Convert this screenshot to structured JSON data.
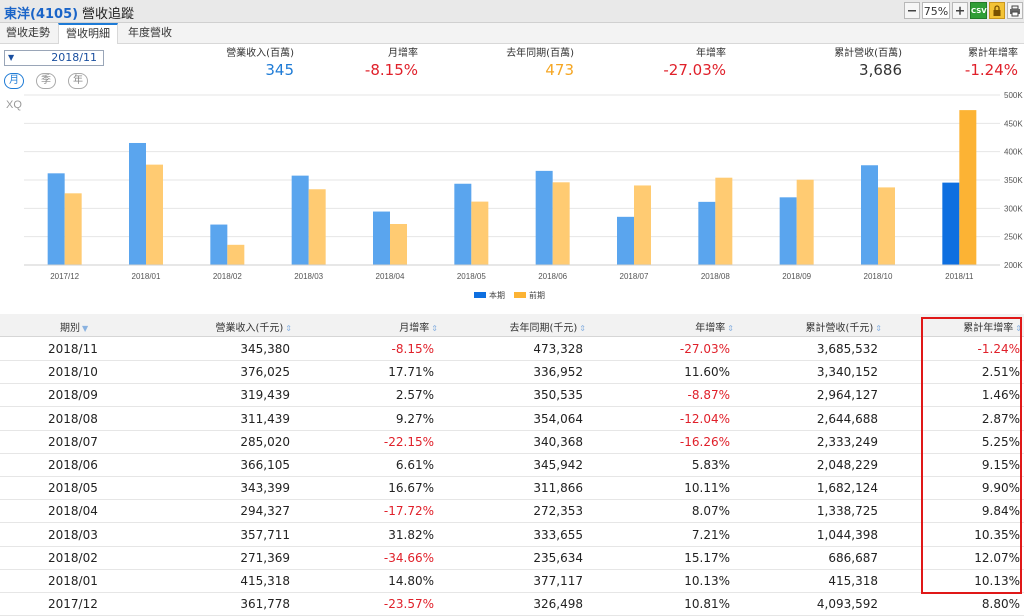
{
  "window": {
    "stock_label": "東洋(4105)",
    "title": "營收追蹤",
    "zoom_value": "75%",
    "csv_label": "CSV"
  },
  "tabs": [
    {
      "label": "營收走勢"
    },
    {
      "label": "營收明細",
      "active": true
    },
    {
      "label": "年度營收"
    }
  ],
  "filter": {
    "date_value": "2018/11",
    "periods": [
      {
        "label": "月",
        "active": true
      },
      {
        "label": "季",
        "active": false
      },
      {
        "label": "年",
        "active": false
      }
    ]
  },
  "summary": [
    {
      "label": "營業收入(百萬)",
      "value": "345",
      "color": "#1e7bd6"
    },
    {
      "label": "月增率",
      "value": "-8.15%",
      "color": "#e0202a"
    },
    {
      "label": "去年同期(百萬)",
      "value": "473",
      "color": "#f5a623"
    },
    {
      "label": "年增率",
      "value": "-27.03%",
      "color": "#e0202a"
    },
    {
      "label": "累計營收(百萬)",
      "value": "3,686",
      "color": "#333333"
    },
    {
      "label": "累計年增率",
      "value": "-1.24%",
      "color": "#e0202a"
    }
  ],
  "chart_data": {
    "type": "bar",
    "watermark": "XQ",
    "categories": [
      "2017/12",
      "2018/01",
      "2018/02",
      "2018/03",
      "2018/04",
      "2018/05",
      "2018/06",
      "2018/07",
      "2018/08",
      "2018/09",
      "2018/10",
      "2018/11"
    ],
    "series": [
      {
        "name": "本期",
        "color": "#5aa5ee",
        "highlight_color": "#0e6fe0",
        "values": [
          361.778,
          415.318,
          271.369,
          357.711,
          294.327,
          343.399,
          366.105,
          285.02,
          311.439,
          319.439,
          376.025,
          345.38
        ]
      },
      {
        "name": "前期",
        "color": "#ffcb72",
        "highlight_color": "#fcb334",
        "values": [
          326.498,
          377.117,
          235.634,
          333.655,
          272.353,
          311.866,
          345.942,
          340.368,
          354.064,
          350.535,
          336.952,
          473.328
        ]
      }
    ],
    "y_ticks": [
      "200K",
      "250K",
      "300K",
      "350K",
      "400K",
      "450K",
      "500K"
    ],
    "ylim": [
      200,
      500
    ],
    "grid": true,
    "legend": "bottom"
  },
  "table": {
    "columns": [
      "期別",
      "營業收入(千元)",
      "月增率",
      "去年同期(千元)",
      "年增率",
      "累計營收(千元)",
      "累計年增率"
    ],
    "rows": [
      {
        "period": "2018/11",
        "revenue": "345,380",
        "mom": "-8.15%",
        "last_year": "473,328",
        "yoy": "-27.03%",
        "cum": "3,685,532",
        "cum_yoy": "-1.24%"
      },
      {
        "period": "2018/10",
        "revenue": "376,025",
        "mom": "17.71%",
        "last_year": "336,952",
        "yoy": "11.60%",
        "cum": "3,340,152",
        "cum_yoy": "2.51%"
      },
      {
        "period": "2018/09",
        "revenue": "319,439",
        "mom": "2.57%",
        "last_year": "350,535",
        "yoy": "-8.87%",
        "cum": "2,964,127",
        "cum_yoy": "1.46%"
      },
      {
        "period": "2018/08",
        "revenue": "311,439",
        "mom": "9.27%",
        "last_year": "354,064",
        "yoy": "-12.04%",
        "cum": "2,644,688",
        "cum_yoy": "2.87%"
      },
      {
        "period": "2018/07",
        "revenue": "285,020",
        "mom": "-22.15%",
        "last_year": "340,368",
        "yoy": "-16.26%",
        "cum": "2,333,249",
        "cum_yoy": "5.25%"
      },
      {
        "period": "2018/06",
        "revenue": "366,105",
        "mom": "6.61%",
        "last_year": "345,942",
        "yoy": "5.83%",
        "cum": "2,048,229",
        "cum_yoy": "9.15%"
      },
      {
        "period": "2018/05",
        "revenue": "343,399",
        "mom": "16.67%",
        "last_year": "311,866",
        "yoy": "10.11%",
        "cum": "1,682,124",
        "cum_yoy": "9.90%"
      },
      {
        "period": "2018/04",
        "revenue": "294,327",
        "mom": "-17.72%",
        "last_year": "272,353",
        "yoy": "8.07%",
        "cum": "1,338,725",
        "cum_yoy": "9.84%"
      },
      {
        "period": "2018/03",
        "revenue": "357,711",
        "mom": "31.82%",
        "last_year": "333,655",
        "yoy": "7.21%",
        "cum": "1,044,398",
        "cum_yoy": "10.35%"
      },
      {
        "period": "2018/02",
        "revenue": "271,369",
        "mom": "-34.66%",
        "last_year": "235,634",
        "yoy": "15.17%",
        "cum": "686,687",
        "cum_yoy": "12.07%"
      },
      {
        "period": "2018/01",
        "revenue": "415,318",
        "mom": "14.80%",
        "last_year": "377,117",
        "yoy": "10.13%",
        "cum": "415,318",
        "cum_yoy": "10.13%"
      },
      {
        "period": "2017/12",
        "revenue": "361,778",
        "mom": "-23.57%",
        "last_year": "326,498",
        "yoy": "10.81%",
        "cum": "4,093,592",
        "cum_yoy": "8.80%"
      }
    ]
  }
}
